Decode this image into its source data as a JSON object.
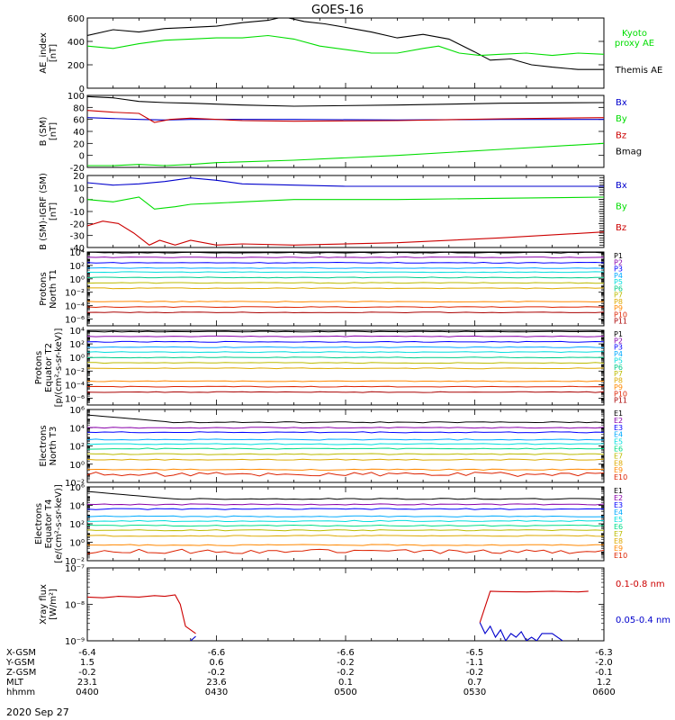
{
  "title": "GOES-16",
  "date_label": "2020 Sep 27",
  "colors": {
    "black": "#000000",
    "green": "#00dd00",
    "blue": "#0000cc",
    "red": "#cc0000",
    "P": [
      "#000000",
      "#8800aa",
      "#0000ff",
      "#00aaff",
      "#00dddd",
      "#00cc88",
      "#bbbb00",
      "#ddaa00",
      "#ff8800",
      "#dd2200",
      "#aa0000"
    ],
    "E": [
      "#000000",
      "#8800aa",
      "#0000ff",
      "#00aaff",
      "#00dddd",
      "#00dd88",
      "#bbbb00",
      "#ddaa00",
      "#ff8800",
      "#dd2200"
    ]
  },
  "ephemeris": {
    "row_labels": [
      "X-GSM",
      "Y-GSM",
      "Z-GSM",
      "MLT",
      "hhmm"
    ],
    "columns": [
      [
        "-6.4",
        "1.5",
        "-0.2",
        "23.1",
        "0400"
      ],
      [
        "-6.6",
        "0.6",
        "-0.2",
        "23.6",
        "0430"
      ],
      [
        "-6.6",
        "-0.2",
        "-0.2",
        "0.1",
        "0500"
      ],
      [
        "-6.5",
        "-1.1",
        "-0.2",
        "0.7",
        "0530"
      ],
      [
        "-6.3",
        "-2.0",
        "-0.1",
        "1.2",
        "0600"
      ]
    ]
  },
  "chart_data": [
    {
      "type": "line",
      "ylabel": "AE_index\n[nT]",
      "ylim": [
        0,
        600
      ],
      "yticks": [
        "0",
        "200",
        "400",
        "600"
      ],
      "series": [
        {
          "name": "Themis AE",
          "color": "black",
          "x": [
            0,
            0.05,
            0.1,
            0.15,
            0.2,
            0.25,
            0.3,
            0.35,
            0.38,
            0.42,
            0.46,
            0.5,
            0.55,
            0.6,
            0.65,
            0.7,
            0.75,
            0.78,
            0.82,
            0.86,
            0.9,
            0.95,
            1
          ],
          "y": [
            450,
            500,
            480,
            510,
            520,
            530,
            560,
            580,
            610,
            570,
            550,
            520,
            480,
            430,
            460,
            420,
            310,
            240,
            250,
            200,
            180,
            160,
            160
          ]
        },
        {
          "name": "Kyoto proxy AE",
          "color": "green",
          "x": [
            0,
            0.05,
            0.1,
            0.15,
            0.2,
            0.25,
            0.3,
            0.35,
            0.4,
            0.45,
            0.5,
            0.55,
            0.6,
            0.65,
            0.68,
            0.72,
            0.76,
            0.8,
            0.85,
            0.9,
            0.95,
            1
          ],
          "y": [
            360,
            340,
            380,
            410,
            420,
            430,
            430,
            450,
            420,
            360,
            330,
            300,
            300,
            340,
            360,
            300,
            280,
            290,
            300,
            280,
            300,
            290
          ]
        }
      ],
      "legend": [
        "Kyoto\nproxy AE",
        "Themis AE"
      ]
    },
    {
      "type": "line",
      "ylabel": "B (SM)\n[nT]",
      "ylim": [
        -20,
        100
      ],
      "yticks": [
        "-20",
        "0",
        "20",
        "40",
        "60",
        "80",
        "100"
      ],
      "series": [
        {
          "name": "Bx",
          "color": "blue",
          "x": [
            0,
            0.1,
            0.15,
            0.2,
            0.4,
            0.6,
            0.8,
            1
          ],
          "y": [
            63,
            60,
            59,
            60,
            60,
            59,
            60,
            60
          ]
        },
        {
          "name": "By",
          "color": "green",
          "x": [
            0,
            0.05,
            0.1,
            0.15,
            0.2,
            0.25,
            0.4,
            0.6,
            0.8,
            1
          ],
          "y": [
            -17,
            -17,
            -15,
            -17,
            -15,
            -12,
            -8,
            0,
            10,
            20
          ]
        },
        {
          "name": "Bz",
          "color": "red",
          "x": [
            0,
            0.05,
            0.1,
            0.13,
            0.16,
            0.2,
            0.3,
            0.4,
            0.6,
            0.8,
            1
          ],
          "y": [
            75,
            72,
            70,
            55,
            60,
            62,
            58,
            57,
            58,
            61,
            63
          ]
        },
        {
          "name": "Bmag",
          "color": "black",
          "x": [
            0,
            0.05,
            0.1,
            0.15,
            0.2,
            0.3,
            0.4,
            0.6,
            0.8,
            1
          ],
          "y": [
            98,
            96,
            90,
            88,
            87,
            84,
            82,
            84,
            87,
            88
          ]
        }
      ],
      "legend": [
        "Bx",
        "By",
        "Bz",
        "Bmag"
      ]
    },
    {
      "type": "line",
      "ylabel": "B (SM)-IGRF (SM)\n[nT]",
      "ylim": [
        -40,
        20
      ],
      "yticks": [
        "-40",
        "-30",
        "-20",
        "-10",
        "0",
        "10",
        "20"
      ],
      "series": [
        {
          "name": "Bx",
          "color": "blue",
          "x": [
            0,
            0.05,
            0.1,
            0.15,
            0.2,
            0.25,
            0.3,
            0.4,
            0.5,
            0.6,
            0.8,
            1
          ],
          "y": [
            14,
            12,
            13,
            15,
            18,
            16,
            13,
            12,
            11,
            11,
            11,
            11
          ]
        },
        {
          "name": "By",
          "color": "green",
          "x": [
            0,
            0.05,
            0.1,
            0.13,
            0.17,
            0.2,
            0.25,
            0.3,
            0.4,
            0.6,
            0.8,
            1
          ],
          "y": [
            0,
            -2,
            2,
            -8,
            -6,
            -4,
            -3,
            -2,
            0,
            0,
            1,
            2
          ]
        },
        {
          "name": "Bz",
          "color": "red",
          "x": [
            0,
            0.03,
            0.06,
            0.09,
            0.12,
            0.14,
            0.17,
            0.2,
            0.25,
            0.3,
            0.4,
            0.6,
            0.8,
            1
          ],
          "y": [
            -22,
            -18,
            -20,
            -28,
            -38,
            -34,
            -38,
            -34,
            -38,
            -37,
            -38,
            -36,
            -32,
            -27
          ]
        }
      ],
      "legend": [
        "Bx",
        "By",
        "Bz"
      ]
    },
    {
      "type": "line",
      "log": true,
      "ylabel": "Protons\nNorth T1",
      "ylim": [
        -7,
        4
      ],
      "yticks": [
        "10⁴",
        "10²",
        "10⁰",
        "10⁻²",
        "10⁻⁴",
        "10⁻⁶"
      ],
      "ytick_exp": [
        4,
        2,
        0,
        -2,
        -4,
        -6
      ],
      "levels": [
        3.9,
        3.2,
        2.4,
        1.6,
        1.0,
        0.2,
        -0.6,
        -1.4,
        -3.4,
        -4.2,
        -5.0
      ],
      "legend": [
        "P1",
        "P2",
        "P3",
        "P4",
        "P5",
        "P6",
        "P7",
        "P8",
        "P9",
        "P10",
        "P11"
      ]
    },
    {
      "type": "line",
      "log": true,
      "ylabel": "Protons\nEquator T2\n[p/(cm²-s-sr-keV)]",
      "ylim": [
        -7,
        4
      ],
      "yticks": [
        "10⁴",
        "10²",
        "10⁰",
        "10⁻²",
        "10⁻⁴",
        "10⁻⁶"
      ],
      "ytick_exp": [
        4,
        2,
        0,
        -2,
        -4,
        -6
      ],
      "levels": [
        3.8,
        3.1,
        2.3,
        1.5,
        0.8,
        0.0,
        -0.8,
        -1.6,
        -3.5,
        -4.3,
        -5.1
      ],
      "legend": [
        "P1",
        "P2",
        "P3",
        "P4",
        "P5",
        "P6",
        "P7",
        "P8",
        "P9",
        "P10",
        "P11"
      ]
    },
    {
      "type": "line",
      "log": true,
      "ylabel": "Electrons\nNorth T3",
      "ylim": [
        -2,
        6
      ],
      "yticks": [
        "10⁶",
        "10⁴",
        "10²",
        "10⁰",
        "10⁻²"
      ],
      "ytick_exp": [
        6,
        4,
        2,
        0,
        -2
      ],
      "levels": [
        4.6,
        4.0,
        3.5,
        2.7,
        2.2,
        1.7,
        1.1,
        0.5,
        -0.6,
        -1.1
      ],
      "legend": [
        "E1",
        "E2",
        "E3",
        "E4",
        "E5",
        "E6",
        "E7",
        "E8",
        "E9",
        "E10"
      ]
    },
    {
      "type": "line",
      "log": true,
      "ylabel": "Electrons\nEquator T4\n[e/(cm²-s-sr-keV)]",
      "ylim": [
        -2,
        6
      ],
      "yticks": [
        "10⁶",
        "10⁴",
        "10²",
        "10⁰",
        "10⁻²"
      ],
      "ytick_exp": [
        6,
        4,
        2,
        0,
        -2
      ],
      "levels": [
        4.7,
        4.1,
        3.6,
        2.8,
        2.3,
        1.8,
        1.3,
        0.7,
        -0.3,
        -1.0
      ],
      "legend": [
        "E1",
        "E2",
        "E3",
        "E4",
        "E5",
        "E6",
        "E7",
        "E8",
        "E9",
        "E10"
      ]
    },
    {
      "type": "line",
      "log": true,
      "ylabel": "Xray flux\n[W/m²]",
      "ylim": [
        -9,
        -7
      ],
      "yticks": [
        "10⁻⁷",
        "10⁻⁸",
        "10⁻⁹"
      ],
      "ytick_exp": [
        -7,
        -8,
        -9
      ],
      "series": [
        {
          "name": "0.1-0.8 nm",
          "color": "red",
          "segments": [
            {
              "x": [
                0.0,
                0.03,
                0.06,
                0.1,
                0.13,
                0.15,
                0.17,
                0.18,
                0.19,
                0.21
              ],
              "y": [
                -7.8,
                -7.82,
                -7.78,
                -7.8,
                -7.76,
                -7.78,
                -7.74,
                -8.0,
                -8.6,
                -8.8
              ]
            },
            {
              "x": [
                0.76,
                0.78,
                0.8,
                0.85,
                0.9,
                0.95,
                0.97
              ],
              "y": [
                -8.5,
                -7.64,
                -7.65,
                -7.66,
                -7.64,
                -7.66,
                -7.64
              ]
            }
          ]
        },
        {
          "name": "0.05-0.4 nm",
          "color": "blue",
          "segments": [
            {
              "x": [
                0.2,
                0.21
              ],
              "y": [
                -9.0,
                -8.88
              ]
            },
            {
              "x": [
                0.76,
                0.77,
                0.78,
                0.79,
                0.8,
                0.81,
                0.82,
                0.83,
                0.84,
                0.85,
                0.86,
                0.87,
                0.88,
                0.9,
                0.92
              ],
              "y": [
                -8.5,
                -8.8,
                -8.6,
                -8.9,
                -8.7,
                -9.0,
                -8.8,
                -8.9,
                -8.75,
                -9.0,
                -8.9,
                -9.0,
                -8.8,
                -8.8,
                -9.0
              ]
            }
          ]
        }
      ],
      "legend": [
        "0.1-0.8 nm",
        "0.05-0.4 nm"
      ]
    }
  ]
}
